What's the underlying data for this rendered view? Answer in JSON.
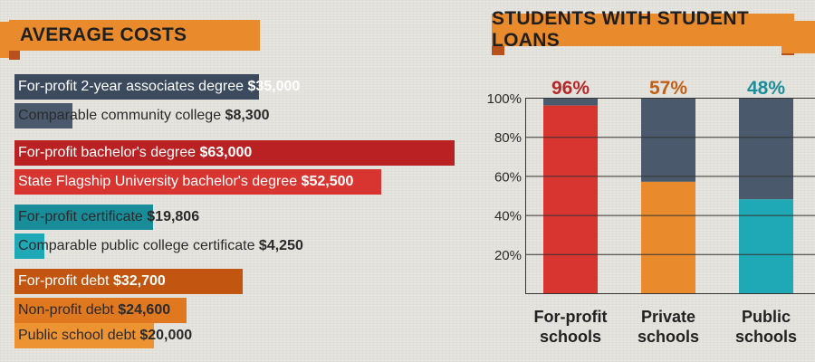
{
  "colors": {
    "navy": "#3b4a5d",
    "slate": "#4a5a6c",
    "red": "#c0262a",
    "bright_red": "#d93530",
    "teal": "#1fa9b6",
    "dark_orange": "#c2550f",
    "orange": "#e98a2c",
    "dark_red_text": "#b3282a",
    "orange_text": "#c06018",
    "teal_text": "#1d8d99"
  },
  "left_header": {
    "title": "AVERAGE COSTS"
  },
  "right_header": {
    "title": "STUDENTS WITH STUDENT LOANS"
  },
  "average_costs": [
    {
      "label": "For-profit 2-year associates degree",
      "amount": "$35,000",
      "value": 35000,
      "color": "#3b4a5d"
    },
    {
      "label": "Comparable community college",
      "amount": "$8,300",
      "value": 8300,
      "color": "#4a5a6c"
    },
    {
      "label": "For-profit bachelor's degree",
      "amount": "$63,000",
      "value": 63000,
      "color": "#b92123"
    },
    {
      "label": "State Flagship University bachelor's degree",
      "amount": "$52,500",
      "value": 52500,
      "color": "#d93530"
    },
    {
      "label": "For-profit certificate",
      "amount": "$19,806",
      "value": 19806,
      "color": "#188d99"
    },
    {
      "label": "Comparable public college certificate",
      "amount": "$4,250",
      "value": 4250,
      "color": "#1fa9b6"
    },
    {
      "label": "For-profit debt",
      "amount": "$32,700",
      "value": 32700,
      "color": "#c2550f"
    },
    {
      "label": "Non-profit debt",
      "amount": "$24,600",
      "value": 24600,
      "color": "#e0781f"
    },
    {
      "label": "Public school debt",
      "amount": "$20,000",
      "value": 20000,
      "color": "#ee9332"
    }
  ],
  "chart_data": [
    {
      "type": "bar",
      "title": "AVERAGE COSTS",
      "categories": [
        "For-profit 2-year associates degree",
        "Comparable community college",
        "For-profit bachelor's degree",
        "State Flagship University bachelor's degree",
        "For-profit certificate",
        "Comparable public college certificate",
        "For-profit debt",
        "Non-profit debt",
        "Public school debt"
      ],
      "values": [
        35000,
        8300,
        63000,
        52500,
        19806,
        4250,
        32700,
        24600,
        20000
      ],
      "orientation": "horizontal"
    },
    {
      "type": "bar",
      "stacked": true,
      "title": "STUDENTS WITH STUDENT LOANS",
      "categories": [
        "For-profit\nschools",
        "Private\nschools",
        "Public\nschools"
      ],
      "series": [
        {
          "values": [
            96,
            57,
            48
          ],
          "colors": [
            "#d93530",
            "#e98a2c",
            "#1fa9b6"
          ]
        },
        {
          "values": [
            4,
            43,
            52
          ],
          "color": "#4a5a6c"
        }
      ],
      "data_labels": [
        "96%",
        "57%",
        "48%"
      ],
      "data_label_colors": [
        "#b3282a",
        "#c06018",
        "#1d8d99"
      ],
      "yticks": [
        "20%",
        "40%",
        "60%",
        "80%",
        "100%"
      ],
      "ylim": [
        0,
        100
      ],
      "grid": true
    }
  ]
}
